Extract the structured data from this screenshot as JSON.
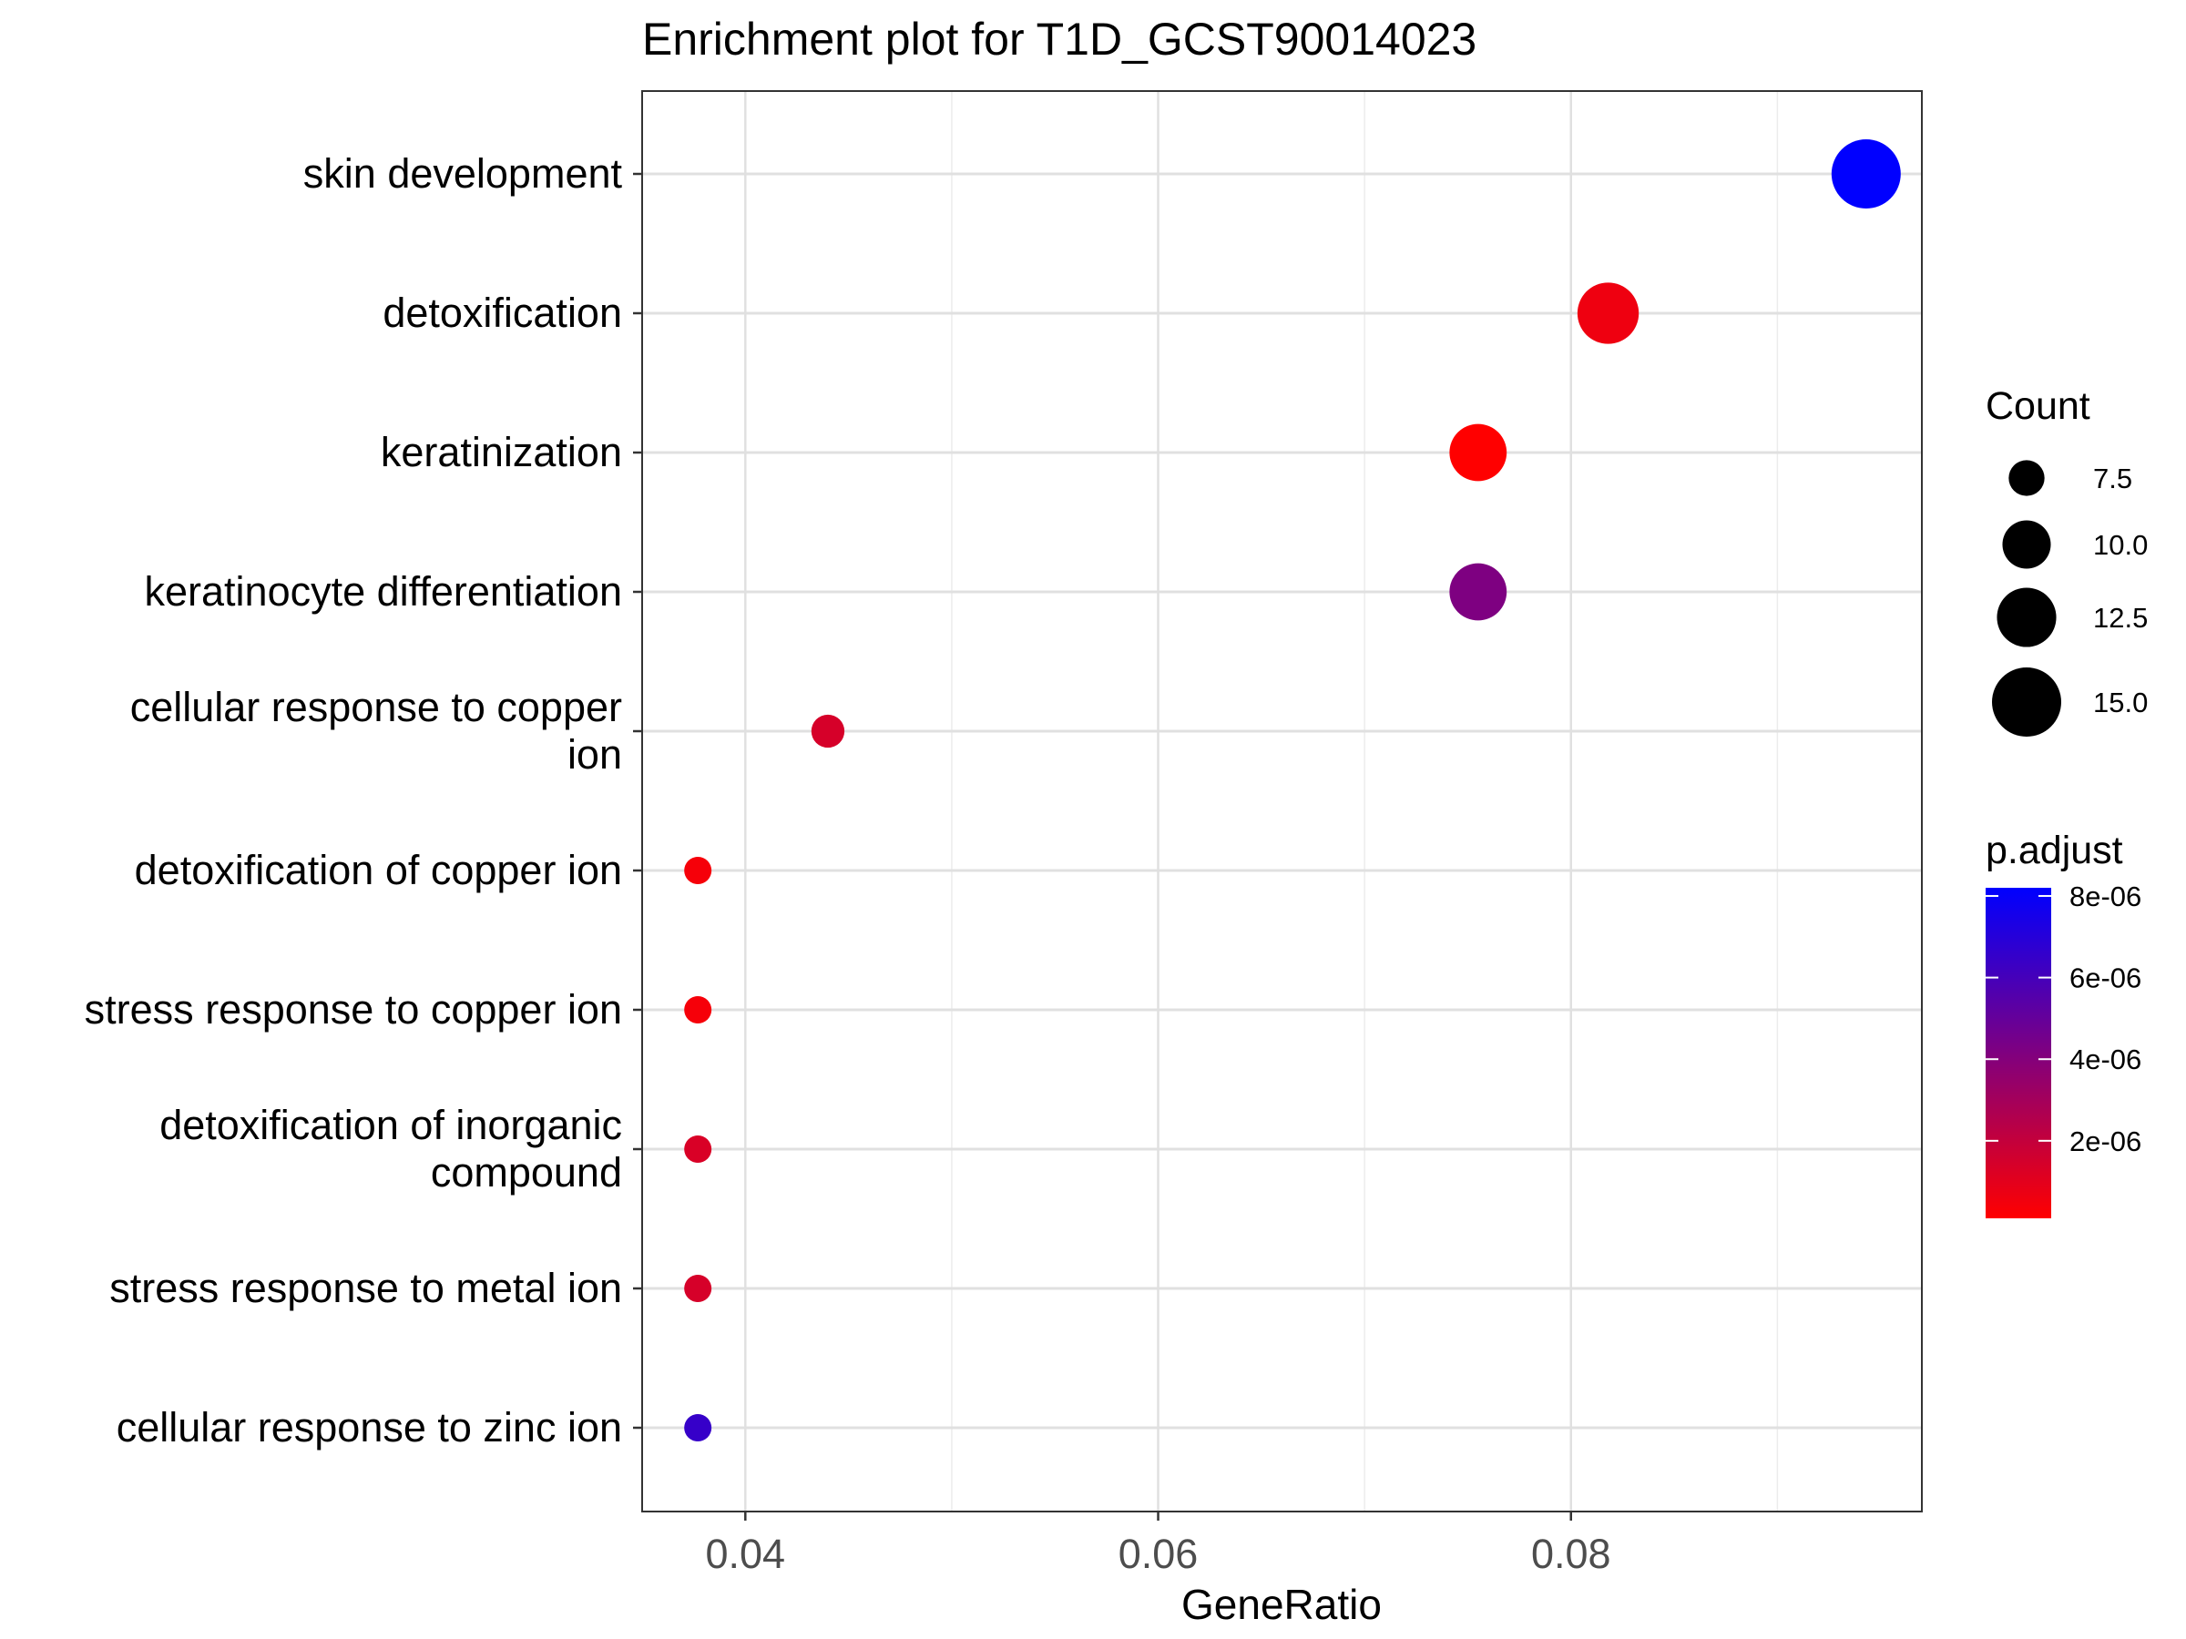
{
  "chart_data": {
    "type": "scatter",
    "title": "Enrichment plot for T1D_GCST90014023",
    "xlabel": "GeneRatio",
    "ylabel": "",
    "xlim": [
      0.035,
      0.097
    ],
    "x_ticks": [
      "0.04",
      "0.06",
      "0.08"
    ],
    "x_tick_values": [
      0.04,
      0.06,
      0.08
    ],
    "grid": true,
    "categories": [
      "skin development",
      "detoxification",
      "keratinization",
      "keratinocyte differentiation",
      "cellular response to copper ion",
      "detoxification of copper ion",
      "stress response to copper ion",
      "detoxification of inorganic compound",
      "stress response to metal ion",
      "cellular response to zinc ion"
    ],
    "category_label_lines": [
      [
        "skin development"
      ],
      [
        "detoxification"
      ],
      [
        "keratinization"
      ],
      [
        "keratinocyte differentiation"
      ],
      [
        "cellular response to copper",
        "ion"
      ],
      [
        "detoxification of copper ion"
      ],
      [
        "stress response to copper ion"
      ],
      [
        "detoxification of inorganic",
        "compound"
      ],
      [
        "stress response to metal ion"
      ],
      [
        "cellular response to zinc ion"
      ]
    ],
    "points": [
      {
        "term": "skin development",
        "gene_ratio": 0.0943,
        "count": 15,
        "p_adjust": 8.2e-06
      },
      {
        "term": "detoxification",
        "gene_ratio": 0.0818,
        "count": 13,
        "p_adjust": 6e-07
      },
      {
        "term": "keratinization",
        "gene_ratio": 0.0755,
        "count": 12,
        "p_adjust": 1e-07
      },
      {
        "term": "keratinocyte differentiation",
        "gene_ratio": 0.0755,
        "count": 12,
        "p_adjust": 4.2e-06
      },
      {
        "term": "cellular response to copper ion",
        "gene_ratio": 0.044,
        "count": 7,
        "p_adjust": 1.4e-06
      },
      {
        "term": "detoxification of copper ion",
        "gene_ratio": 0.0377,
        "count": 6,
        "p_adjust": 4e-07
      },
      {
        "term": "stress response to copper ion",
        "gene_ratio": 0.0377,
        "count": 6,
        "p_adjust": 4e-07
      },
      {
        "term": "detoxification of inorganic compound",
        "gene_ratio": 0.0377,
        "count": 6,
        "p_adjust": 1.3e-06
      },
      {
        "term": "stress response to metal ion",
        "gene_ratio": 0.0377,
        "count": 6,
        "p_adjust": 1.4e-06
      },
      {
        "term": "cellular response to zinc ion",
        "gene_ratio": 0.0377,
        "count": 6,
        "p_adjust": 6.5e-06
      }
    ],
    "size_legend": {
      "title": "Count",
      "values": [
        7.5,
        10,
        12.5,
        15
      ],
      "labels": [
        "7.5",
        "10.0",
        "12.5",
        "15.0"
      ]
    },
    "color_legend": {
      "title": "p.adjust",
      "low_color": "#FF0000",
      "high_color": "#0000FF",
      "range": [
        1e-07,
        8.2e-06
      ],
      "ticks": [
        2e-06,
        4e-06,
        6e-06,
        8e-06
      ],
      "labels": [
        "2e-06",
        "4e-06",
        "6e-06",
        "8e-06"
      ]
    },
    "legend_position": "right"
  }
}
